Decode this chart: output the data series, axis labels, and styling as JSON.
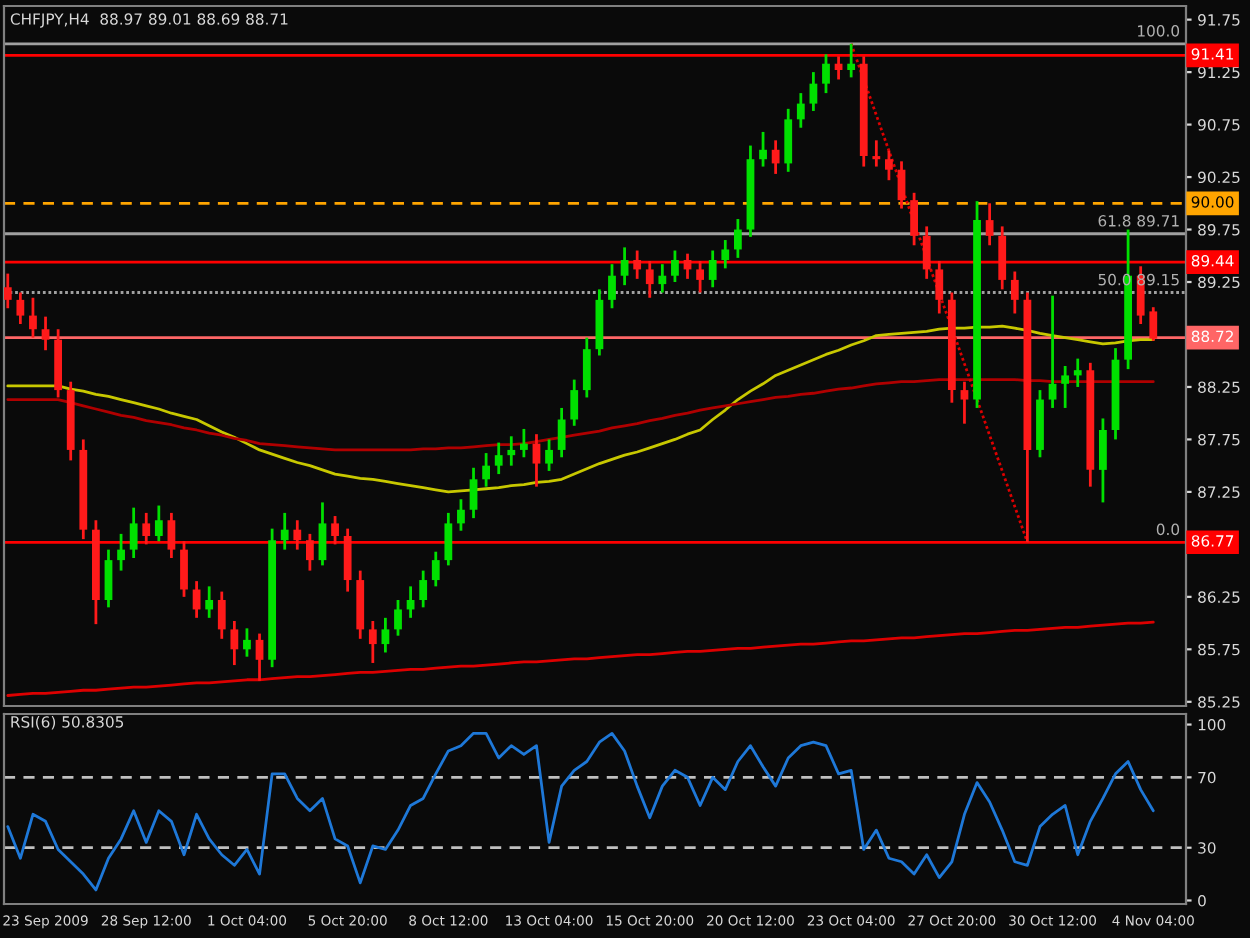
{
  "chart_data": [
    {
      "type": "candlestick",
      "title": "CHFJPY,H4  88.97 89.01 88.69 88.71",
      "categories": [
        null,
        null,
        null,
        null,
        null,
        null,
        null,
        null,
        null,
        null,
        null,
        null,
        null,
        null,
        null,
        null,
        null,
        null,
        null,
        null,
        null,
        null,
        null,
        null,
        null,
        null,
        null,
        null,
        null,
        null,
        null,
        null,
        null,
        null,
        null,
        null,
        null,
        null,
        null,
        null,
        null,
        null,
        null,
        null,
        null,
        null,
        null,
        null,
        null,
        null,
        null,
        null,
        null,
        null,
        null,
        null,
        null,
        null,
        null,
        null,
        null,
        null,
        null,
        null,
        null,
        null,
        null,
        null,
        null,
        null,
        null,
        null,
        null,
        null,
        null,
        null,
        null,
        null,
        null,
        null,
        null,
        null,
        null,
        null,
        null,
        null,
        null,
        null,
        null,
        null,
        null,
        null
      ],
      "ohlc": [
        [
          89.2,
          89.33,
          89.0,
          89.08
        ],
        [
          89.08,
          89.15,
          88.85,
          88.93
        ],
        [
          88.93,
          89.1,
          88.72,
          88.8
        ],
        [
          88.8,
          88.92,
          88.6,
          88.7
        ],
        [
          88.7,
          88.8,
          88.15,
          88.22
        ],
        [
          88.22,
          88.3,
          87.55,
          87.65
        ],
        [
          87.65,
          87.75,
          86.8,
          86.89
        ],
        [
          86.89,
          86.98,
          85.99,
          86.22
        ],
        [
          86.22,
          86.7,
          86.15,
          86.6
        ],
        [
          86.6,
          86.85,
          86.5,
          86.7
        ],
        [
          86.7,
          87.1,
          86.62,
          86.95
        ],
        [
          86.95,
          87.05,
          86.75,
          86.83
        ],
        [
          86.83,
          87.12,
          86.78,
          86.98
        ],
        [
          86.98,
          87.05,
          86.62,
          86.7
        ],
        [
          86.7,
          86.78,
          86.25,
          86.32
        ],
        [
          86.32,
          86.4,
          86.05,
          86.13
        ],
        [
          86.13,
          86.35,
          86.05,
          86.22
        ],
        [
          86.22,
          86.3,
          85.85,
          85.94
        ],
        [
          85.94,
          86.02,
          85.6,
          85.75
        ],
        [
          85.75,
          85.95,
          85.68,
          85.84
        ],
        [
          85.84,
          85.9,
          85.45,
          85.65
        ],
        [
          85.65,
          86.9,
          85.58,
          86.79
        ],
        [
          86.79,
          87.05,
          86.7,
          86.89
        ],
        [
          86.89,
          86.98,
          86.7,
          86.79
        ],
        [
          86.79,
          86.85,
          86.5,
          86.6
        ],
        [
          86.6,
          87.15,
          86.55,
          86.95
        ],
        [
          86.95,
          87.02,
          86.75,
          86.83
        ],
        [
          86.83,
          86.9,
          86.3,
          86.41
        ],
        [
          86.41,
          86.5,
          85.85,
          85.94
        ],
        [
          85.94,
          86.02,
          85.62,
          85.8
        ],
        [
          85.8,
          86.05,
          85.72,
          85.94
        ],
        [
          85.94,
          86.22,
          85.88,
          86.13
        ],
        [
          86.13,
          86.35,
          86.05,
          86.22
        ],
        [
          86.22,
          86.5,
          86.15,
          86.41
        ],
        [
          86.41,
          86.68,
          86.35,
          86.6
        ],
        [
          86.6,
          87.05,
          86.55,
          86.95
        ],
        [
          86.95,
          87.18,
          86.88,
          87.08
        ],
        [
          87.08,
          87.48,
          87.0,
          87.37
        ],
        [
          87.37,
          87.62,
          87.3,
          87.5
        ],
        [
          87.5,
          87.72,
          87.42,
          87.6
        ],
        [
          87.6,
          87.78,
          87.5,
          87.65
        ],
        [
          87.65,
          87.85,
          87.58,
          87.71
        ],
        [
          87.71,
          87.8,
          87.3,
          87.52
        ],
        [
          87.52,
          87.75,
          87.45,
          87.65
        ],
        [
          87.65,
          88.05,
          87.58,
          87.94
        ],
        [
          87.94,
          88.32,
          87.88,
          88.22
        ],
        [
          88.22,
          88.72,
          88.15,
          88.61
        ],
        [
          88.61,
          89.18,
          88.55,
          89.08
        ],
        [
          89.08,
          89.42,
          89.0,
          89.31
        ],
        [
          89.31,
          89.58,
          89.22,
          89.46
        ],
        [
          89.46,
          89.55,
          89.28,
          89.37
        ],
        [
          89.37,
          89.45,
          89.1,
          89.23
        ],
        [
          89.23,
          89.42,
          89.15,
          89.31
        ],
        [
          89.31,
          89.55,
          89.25,
          89.46
        ],
        [
          89.46,
          89.52,
          89.28,
          89.37
        ],
        [
          89.37,
          89.45,
          89.15,
          89.27
        ],
        [
          89.27,
          89.55,
          89.2,
          89.46
        ],
        [
          89.46,
          89.65,
          89.38,
          89.56
        ],
        [
          89.56,
          89.85,
          89.48,
          89.75
        ],
        [
          89.75,
          90.55,
          89.68,
          90.42
        ],
        [
          90.42,
          90.68,
          90.35,
          90.51
        ],
        [
          90.51,
          90.6,
          90.28,
          90.38
        ],
        [
          90.38,
          90.9,
          90.3,
          90.8
        ],
        [
          90.8,
          91.05,
          90.72,
          90.95
        ],
        [
          90.95,
          91.25,
          90.88,
          91.14
        ],
        [
          91.14,
          91.42,
          91.05,
          91.33
        ],
        [
          91.33,
          91.4,
          91.18,
          91.27
        ],
        [
          91.27,
          91.52,
          91.2,
          91.33
        ],
        [
          91.33,
          91.4,
          90.35,
          90.45
        ],
        [
          90.45,
          90.6,
          90.35,
          90.42
        ],
        [
          90.42,
          90.5,
          90.22,
          90.32
        ],
        [
          90.32,
          90.4,
          89.95,
          90.03
        ],
        [
          90.03,
          90.1,
          89.6,
          89.69
        ],
        [
          89.69,
          89.78,
          89.28,
          89.37
        ],
        [
          89.37,
          89.45,
          88.95,
          89.08
        ],
        [
          89.08,
          89.15,
          88.1,
          88.22
        ],
        [
          88.22,
          88.3,
          87.9,
          88.13
        ],
        [
          88.13,
          90.02,
          88.05,
          89.84
        ],
        [
          89.84,
          90.0,
          89.6,
          89.69
        ],
        [
          89.69,
          89.78,
          89.18,
          89.27
        ],
        [
          89.27,
          89.35,
          88.95,
          89.08
        ],
        [
          89.08,
          89.15,
          86.77,
          87.65
        ],
        [
          87.65,
          88.22,
          87.58,
          88.13
        ],
        [
          88.13,
          89.12,
          88.05,
          88.28
        ],
        [
          88.28,
          88.45,
          88.05,
          88.36
        ],
        [
          88.36,
          88.52,
          88.25,
          88.41
        ],
        [
          88.41,
          88.48,
          87.3,
          87.46
        ],
        [
          87.46,
          87.95,
          87.15,
          87.84
        ],
        [
          87.84,
          88.62,
          87.75,
          88.51
        ],
        [
          88.51,
          89.75,
          88.42,
          89.31
        ],
        [
          89.31,
          89.4,
          88.85,
          88.93
        ],
        [
          88.97,
          89.01,
          88.69,
          88.71
        ]
      ],
      "series": [
        {
          "type": "line",
          "color": "#c8c800",
          "values": [
            88.26,
            88.26,
            88.26,
            88.26,
            88.26,
            88.23,
            88.21,
            88.18,
            88.16,
            88.13,
            88.1,
            88.07,
            88.04,
            88.0,
            87.97,
            87.94,
            87.88,
            87.82,
            87.77,
            87.71,
            87.65,
            87.61,
            87.57,
            87.53,
            87.5,
            87.46,
            87.42,
            87.4,
            87.38,
            87.37,
            87.35,
            87.33,
            87.31,
            87.29,
            87.27,
            87.25,
            87.26,
            87.27,
            87.28,
            87.29,
            87.31,
            87.32,
            87.34,
            87.35,
            87.37,
            87.42,
            87.47,
            87.52,
            87.56,
            87.6,
            87.63,
            87.67,
            87.71,
            87.75,
            87.8,
            87.84,
            87.94,
            88.03,
            88.13,
            88.21,
            88.28,
            88.36,
            88.41,
            88.46,
            88.51,
            88.56,
            88.6,
            88.65,
            88.69,
            88.74,
            88.75,
            88.76,
            88.77,
            88.78,
            88.8,
            88.81,
            88.81,
            88.82,
            88.82,
            88.83,
            88.81,
            88.79,
            88.76,
            88.74,
            88.72,
            88.7,
            88.68,
            88.66,
            88.67,
            88.69,
            88.7,
            88.7
          ]
        },
        {
          "type": "line",
          "color": "#b00000",
          "values": [
            88.13,
            88.13,
            88.13,
            88.13,
            88.13,
            88.1,
            88.07,
            88.04,
            88.01,
            87.98,
            87.96,
            87.93,
            87.91,
            87.89,
            87.86,
            87.84,
            87.81,
            87.79,
            87.76,
            87.74,
            87.71,
            87.7,
            87.69,
            87.68,
            87.67,
            87.66,
            87.65,
            87.65,
            87.65,
            87.65,
            87.65,
            87.65,
            87.65,
            87.66,
            87.66,
            87.67,
            87.67,
            87.68,
            87.69,
            87.7,
            87.7,
            87.71,
            87.73,
            87.75,
            87.77,
            87.79,
            87.81,
            87.83,
            87.86,
            87.88,
            87.9,
            87.93,
            87.95,
            87.98,
            88.0,
            88.03,
            88.05,
            88.07,
            88.09,
            88.11,
            88.13,
            88.15,
            88.16,
            88.18,
            88.19,
            88.21,
            88.23,
            88.24,
            88.26,
            88.28,
            88.29,
            88.3,
            88.3,
            88.31,
            88.32,
            88.32,
            88.32,
            88.32,
            88.32,
            88.32,
            88.32,
            88.31,
            88.31,
            88.3,
            88.3,
            88.3,
            88.3,
            88.3,
            88.3,
            88.3,
            88.3,
            88.3
          ]
        },
        {
          "type": "line",
          "color": "#dd0000",
          "values": [
            85.31,
            85.32,
            85.33,
            85.33,
            85.34,
            85.35,
            85.36,
            85.36,
            85.37,
            85.38,
            85.39,
            85.39,
            85.4,
            85.41,
            85.42,
            85.43,
            85.43,
            85.44,
            85.45,
            85.46,
            85.46,
            85.47,
            85.48,
            85.49,
            85.49,
            85.5,
            85.51,
            85.52,
            85.53,
            85.53,
            85.54,
            85.55,
            85.56,
            85.56,
            85.57,
            85.58,
            85.59,
            85.59,
            85.6,
            85.61,
            85.62,
            85.63,
            85.63,
            85.64,
            85.65,
            85.66,
            85.66,
            85.67,
            85.68,
            85.69,
            85.7,
            85.7,
            85.71,
            85.72,
            85.73,
            85.73,
            85.74,
            85.75,
            85.76,
            85.76,
            85.77,
            85.78,
            85.79,
            85.8,
            85.8,
            85.81,
            85.82,
            85.83,
            85.83,
            85.84,
            85.85,
            85.86,
            85.86,
            85.87,
            85.88,
            85.89,
            85.9,
            85.9,
            85.91,
            85.92,
            85.93,
            85.93,
            85.94,
            85.95,
            85.96,
            85.96,
            85.97,
            85.98,
            85.99,
            86.0,
            86.0,
            86.01
          ]
        },
        {
          "type": "line",
          "color": "#dd0000",
          "line_style": "dotted",
          "values": [
            null,
            null,
            null,
            null,
            null,
            null,
            null,
            null,
            null,
            null,
            null,
            null,
            null,
            null,
            null,
            null,
            null,
            null,
            null,
            null,
            null,
            null,
            null,
            null,
            null,
            null,
            null,
            null,
            null,
            null,
            null,
            null,
            null,
            null,
            null,
            null,
            null,
            null,
            null,
            null,
            null,
            null,
            null,
            null,
            null,
            null,
            null,
            null,
            null,
            null,
            null,
            null,
            null,
            null,
            null,
            null,
            null,
            null,
            null,
            null,
            null,
            null,
            null,
            null,
            null,
            null,
            null,
            91.52,
            91.18,
            90.84,
            90.5,
            90.16,
            89.82,
            89.48,
            89.14,
            88.81,
            88.47,
            88.13,
            87.79,
            87.45,
            87.11,
            86.77,
            null,
            null,
            null,
            null,
            null,
            null,
            null,
            null,
            null,
            null
          ]
        }
      ],
      "ref_lines": [
        {
          "axis": "y",
          "value": 91.41,
          "label": "91.41",
          "color": "#ff0000"
        },
        {
          "axis": "y",
          "value": 90.0,
          "label": "90.00",
          "color": "#ffa500",
          "line_style": "dashed"
        },
        {
          "axis": "y",
          "value": 89.44,
          "label": "89.44",
          "color": "#ff0000"
        },
        {
          "axis": "y",
          "value": 88.72,
          "label": "88.72",
          "color": "#ff6666"
        },
        {
          "axis": "y",
          "value": 86.77,
          "label": "86.77",
          "color": "#ff0000"
        },
        {
          "axis": "y",
          "value": 91.52,
          "color": "#a0a0a0"
        },
        {
          "axis": "y",
          "value": 89.71,
          "color": "#a0a0a0"
        },
        {
          "axis": "y",
          "value": 89.15,
          "color": "#a0a0a0",
          "line_style": "dotted"
        }
      ],
      "annotations": [
        {
          "text": "100.0",
          "y": 91.52
        },
        {
          "text": "61.8 89.71",
          "y": 89.71
        },
        {
          "text": "50.0 89.15",
          "y": 89.15
        },
        {
          "text": "0.0",
          "y": 86.77
        }
      ],
      "ylim": [
        85.21,
        91.88
      ],
      "yticks": [
        85.25,
        85.75,
        86.25,
        87.25,
        87.75,
        88.25,
        89.25,
        89.75,
        90.25,
        90.75,
        91.25,
        91.75
      ],
      "tick_labels": "y"
    },
    {
      "type": "line",
      "title": "RSI(6) 50.8305",
      "categories": [
        null,
        null,
        null,
        "23 Sep 2009",
        null,
        null,
        null,
        null,
        null,
        null,
        null,
        "28 Sep 12:00",
        null,
        null,
        null,
        null,
        null,
        null,
        null,
        "1 Oct 04:00",
        null,
        null,
        null,
        null,
        null,
        null,
        null,
        "5 Oct 20:00",
        null,
        null,
        null,
        null,
        null,
        null,
        null,
        "8 Oct 12:00",
        null,
        null,
        null,
        null,
        null,
        null,
        null,
        "13 Oct 04:00",
        null,
        null,
        null,
        null,
        null,
        null,
        null,
        "15 Oct 20:00",
        null,
        null,
        null,
        null,
        null,
        null,
        null,
        "20 Oct 12:00",
        null,
        null,
        null,
        null,
        null,
        null,
        null,
        "23 Oct 04:00",
        null,
        null,
        null,
        null,
        null,
        null,
        null,
        "27 Oct 20:00",
        null,
        null,
        null,
        null,
        null,
        null,
        null,
        "30 Oct 12:00",
        null,
        null,
        null,
        null,
        null,
        null,
        null,
        "4 Nov 04:00"
      ],
      "series": [
        {
          "color": "#1e78d8",
          "values": [
            42,
            24,
            49,
            45,
            29,
            22,
            15,
            6,
            24,
            35,
            51,
            33,
            51,
            45,
            26,
            49,
            35,
            26,
            20,
            29,
            15,
            72,
            72,
            58,
            51,
            58,
            35,
            31,
            10,
            31,
            29,
            40,
            54,
            58,
            72,
            85,
            88,
            95,
            95,
            81,
            88,
            83,
            88,
            33,
            65,
            74,
            79,
            90,
            95,
            85,
            65,
            47,
            65,
            74,
            70,
            54,
            70,
            63,
            79,
            88,
            76,
            65,
            81,
            88,
            90,
            88,
            72,
            74,
            29,
            40,
            24,
            22,
            15,
            26,
            13,
            22,
            49,
            67,
            56,
            40,
            22,
            20,
            42,
            49,
            54,
            26,
            45,
            58,
            72,
            79,
            63,
            51
          ]
        }
      ],
      "ref_lines": [
        {
          "axis": "y",
          "value": 70,
          "color": "#c0c0c0",
          "line_style": "dashed"
        },
        {
          "axis": "y",
          "value": 30,
          "color": "#c0c0c0",
          "line_style": "dashed"
        }
      ],
      "ylim": [
        -2,
        106
      ],
      "yticks": [
        0,
        30,
        70,
        100
      ]
    }
  ]
}
